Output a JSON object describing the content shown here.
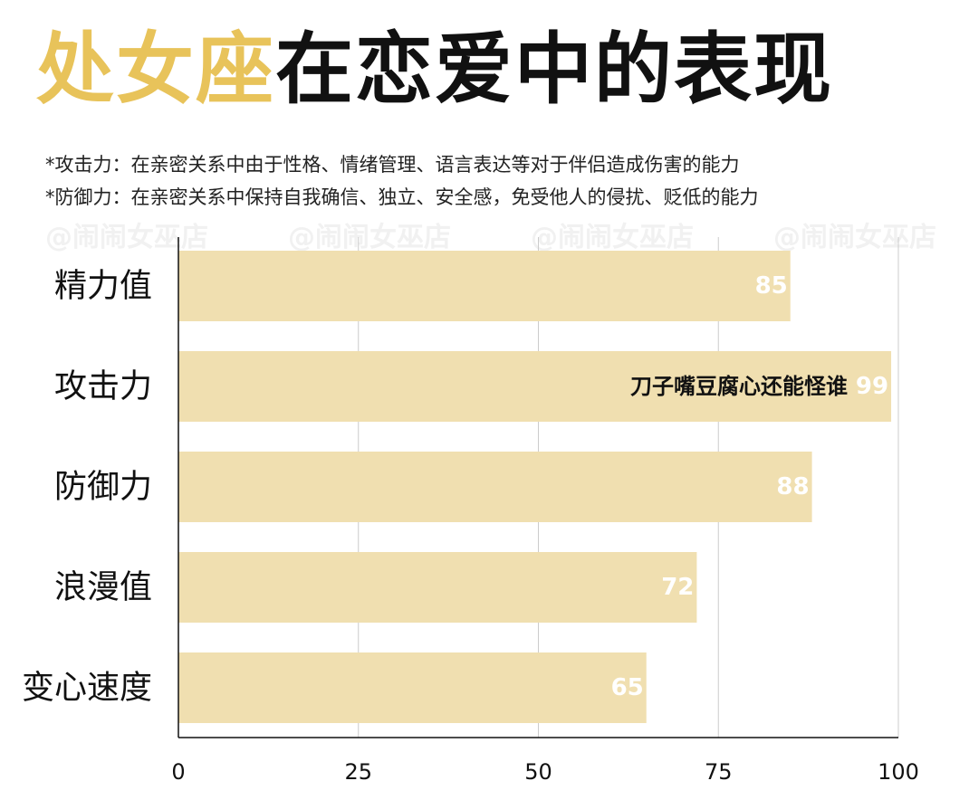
{
  "title": {
    "highlight": "处女座",
    "rest": "在恋爱中的表现"
  },
  "notes": [
    "*攻击力：在亲密关系中由于性格、情绪管理、语言表达等对于伴侣造成伤害的能力",
    "*防御力：在亲密关系中保持自我确信、独立、安全感，免受他人的侵扰、贬低的能力"
  ],
  "watermarks": [
    "@闹闹女巫店",
    "@闹闹女巫店",
    "@闹闹女巫店",
    "@闹闹女巫店"
  ],
  "colors": {
    "accent": "#e8c35a",
    "bar": "#f0dfb0",
    "grid": "#cccccc",
    "value_text": "#ffffff"
  },
  "chart_data": {
    "type": "bar",
    "orientation": "horizontal",
    "categories": [
      "精力值",
      "攻击力",
      "防御力",
      "浪漫值",
      "变心速度"
    ],
    "values": [
      85,
      99,
      88,
      72,
      65
    ],
    "data_labels": [
      "85",
      "99",
      "88",
      "72",
      "65"
    ],
    "xlim": [
      0,
      100
    ],
    "xticks": [
      0,
      25,
      50,
      75,
      100
    ],
    "xtick_labels": [
      "0",
      "25",
      "50",
      "75",
      "100"
    ],
    "grid": "vertical",
    "legend": "none",
    "annotations": [
      {
        "category": "攻击力",
        "text": "刀子嘴豆腐心还能怪谁"
      }
    ]
  }
}
